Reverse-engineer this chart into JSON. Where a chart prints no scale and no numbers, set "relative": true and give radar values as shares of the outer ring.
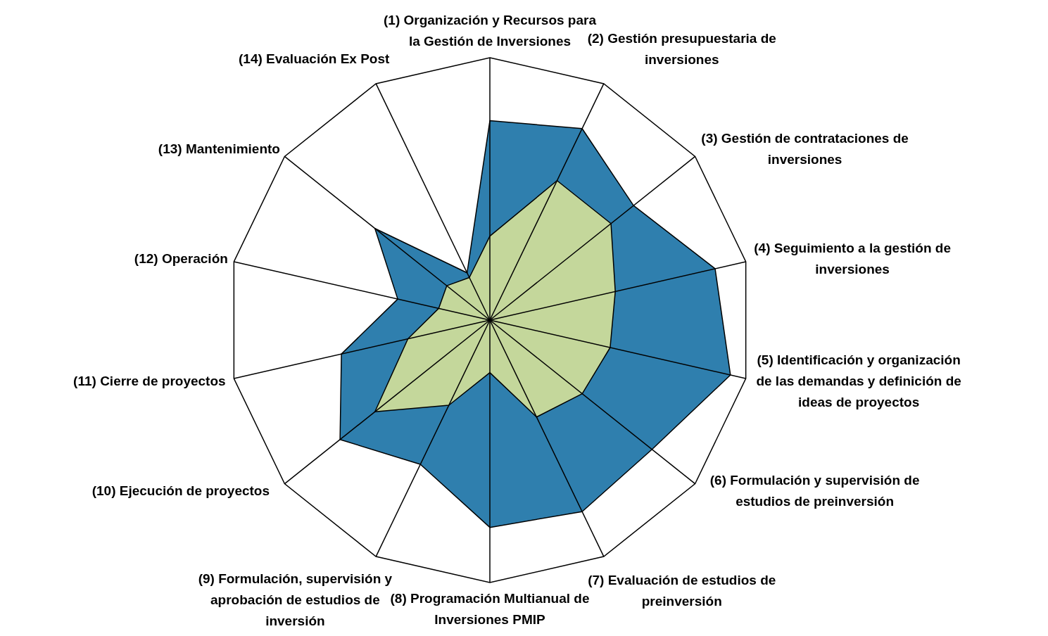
{
  "chart_data": {
    "type": "radar",
    "relative": true,
    "categories": [
      "(1) Organización y Recursos para la Gestión de Inversiones",
      "(2) Gestión presupuestaria de inversiones",
      "(3) Gestión de contrataciones de inversiones",
      "(4) Seguimiento a la gestión de inversiones",
      "(5) Identificación y organización de las demandas y definición de ideas de proyectos",
      "(6) Formulación y supervisión de estudios de preinversión",
      "(7) Evaluación de estudios de preinversión",
      "(8) Programación Multianual de Inversiones PMIP",
      "(9) Formulación, supervisión y aprobación de estudios de inversión",
      "(10) Ejecución de proyectos",
      "(11) Cierre de proyectos",
      "(12) Operación",
      "(13) Mantenimiento",
      "(14) Evaluación Ex Post"
    ],
    "series": [
      {
        "color": "#2f7fae",
        "values": [
          0.76,
          0.81,
          0.7,
          0.88,
          0.94,
          0.79,
          0.81,
          0.79,
          0.61,
          0.73,
          0.58,
          0.36,
          0.56,
          0.2
        ]
      },
      {
        "color": "#c4d79b",
        "values": [
          0.32,
          0.59,
          0.59,
          0.49,
          0.47,
          0.45,
          0.41,
          0.2,
          0.36,
          0.56,
          0.32,
          0.2,
          0.21,
          0.18
        ]
      }
    ]
  }
}
